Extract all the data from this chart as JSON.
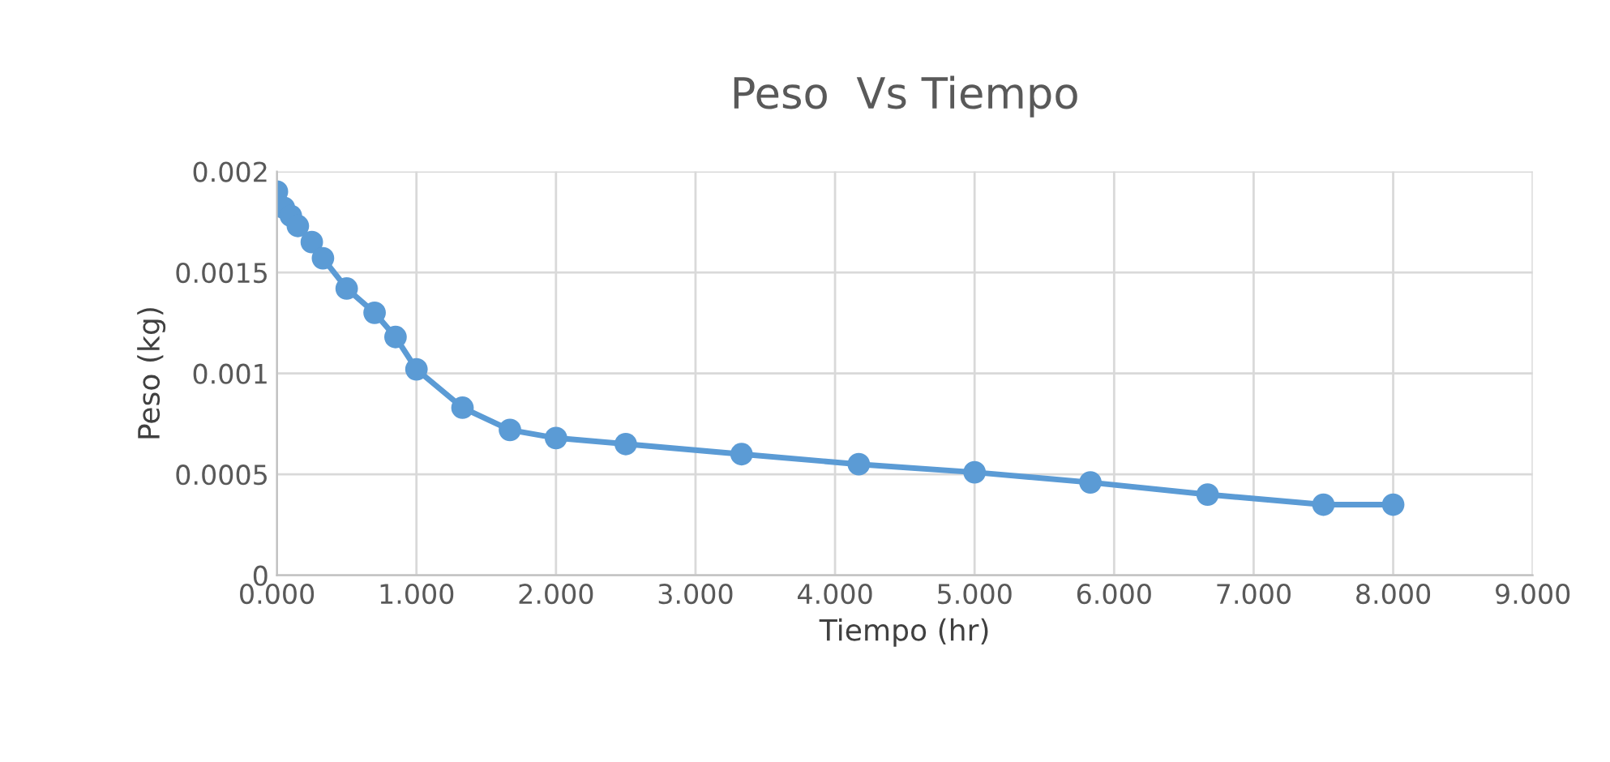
{
  "chart_data": {
    "type": "line",
    "title": "Peso  Vs Tiempo",
    "xlabel": "Tiempo (hr)",
    "ylabel": "Peso (kg)",
    "x": [
      0,
      0.05,
      0.1,
      0.15,
      0.25,
      0.33,
      0.5,
      0.7,
      0.85,
      1.0,
      1.33,
      1.67,
      2.0,
      2.5,
      3.33,
      4.17,
      5.0,
      5.83,
      6.67,
      7.5,
      8.0
    ],
    "series": [
      {
        "color": "#5b9bd5",
        "values": [
          0.0019,
          0.00182,
          0.00178,
          0.00173,
          0.00165,
          0.00157,
          0.00142,
          0.0013,
          0.00118,
          0.00102,
          0.00083,
          0.00072,
          0.00068,
          0.00065,
          0.0006,
          0.00055,
          0.00051,
          0.00046,
          0.0004,
          0.00035,
          0.00035
        ]
      }
    ],
    "xlim": [
      0,
      9
    ],
    "xticks": [
      {
        "value": 0,
        "label": "0.000"
      },
      {
        "value": 1,
        "label": "1.000"
      },
      {
        "value": 2,
        "label": "2.000"
      },
      {
        "value": 3,
        "label": "3.000"
      },
      {
        "value": 4,
        "label": "4.000"
      },
      {
        "value": 5,
        "label": "5.000"
      },
      {
        "value": 6,
        "label": "6.000"
      },
      {
        "value": 7,
        "label": "7.000"
      },
      {
        "value": 8,
        "label": "8.000"
      },
      {
        "value": 9,
        "label": "9.000"
      }
    ],
    "ylim": [
      0,
      0.002
    ],
    "yticks": [
      0,
      0.0005,
      0.001,
      0.0015,
      0.002
    ],
    "grid": true,
    "legend": false,
    "marker": "circle",
    "line_style": "solid"
  }
}
